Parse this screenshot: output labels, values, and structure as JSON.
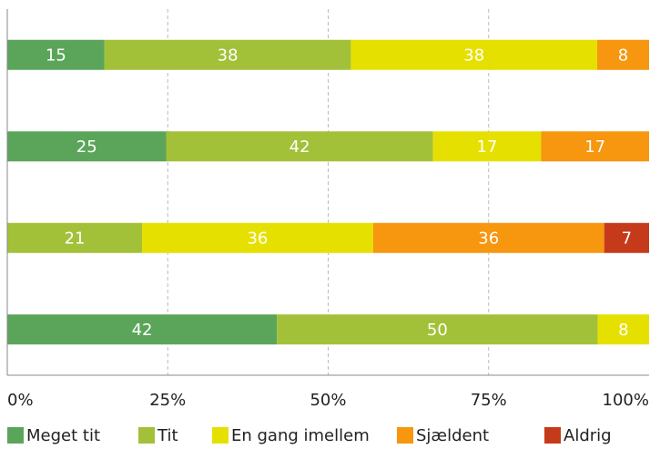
{
  "chart_data": {
    "type": "bar",
    "orientation": "horizontal",
    "stacked": "percent",
    "categories": [
      null,
      null,
      null,
      null
    ],
    "series": [
      {
        "name": "Meget tit",
        "color": "#5ba55b",
        "values": [
          15,
          25,
          null,
          42
        ]
      },
      {
        "name": "Tit",
        "color": "#a3c138",
        "values": [
          38,
          42,
          21,
          50
        ]
      },
      {
        "name": "En gang imellem",
        "color": "#e6e000",
        "values": [
          38,
          17,
          36,
          8
        ]
      },
      {
        "name": "Sjældent",
        "color": "#f7960f",
        "values": [
          8,
          17,
          36,
          null
        ]
      },
      {
        "name": "Aldrig",
        "color": "#c63a1c",
        "values": [
          null,
          null,
          7,
          null
        ]
      }
    ],
    "xlim": [
      0,
      100
    ],
    "xticks": [
      {
        "value": 0,
        "label": "0%"
      },
      {
        "value": 25,
        "label": "25%"
      },
      {
        "value": 50,
        "label": "50%"
      },
      {
        "value": 75,
        "label": "75%"
      },
      {
        "value": 100,
        "label": "100%"
      }
    ],
    "grid": true,
    "legend": "bottom"
  }
}
